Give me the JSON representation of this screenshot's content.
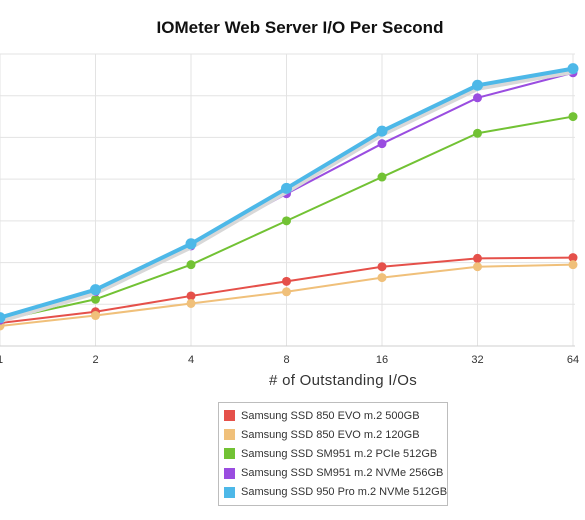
{
  "chart_data": {
    "type": "line",
    "title": "IOMeter Web Server I/O Per Second",
    "xlabel": "# of Outstanding I/Os",
    "ylabel": "",
    "x": [
      "1",
      "2",
      "4",
      "8",
      "16",
      "32",
      "64"
    ],
    "ylim": [
      0,
      7
    ],
    "grid": true,
    "legend_position": "bottom",
    "series": [
      {
        "name": "Samsung SSD 850 EVO m.2 500GB",
        "color": "#e5504a",
        "values": [
          0.55,
          0.82,
          1.2,
          1.55,
          1.9,
          2.1,
          2.12
        ]
      },
      {
        "name": "Samsung SSD 850 EVO m.2 120GB",
        "color": "#f0c07a",
        "values": [
          0.48,
          0.73,
          1.02,
          1.3,
          1.64,
          1.9,
          1.95
        ]
      },
      {
        "name": "Samsung SSD SM951 m.2 PCIe 512GB",
        "color": "#72c234",
        "values": [
          0.62,
          1.12,
          1.95,
          3.0,
          4.05,
          5.1,
          5.5
        ]
      },
      {
        "name": "Samsung SSD SM951 m.2 NVMe 256GB",
        "color": "#9a4de0",
        "values": [
          0.62,
          1.3,
          2.4,
          3.65,
          4.85,
          5.95,
          6.55
        ]
      },
      {
        "name": "Samsung SSD 950 Pro m.2 NVMe 512GB",
        "color": "#4db8e8",
        "values": [
          0.68,
          1.35,
          2.45,
          3.78,
          5.15,
          6.25,
          6.65
        ]
      }
    ]
  }
}
